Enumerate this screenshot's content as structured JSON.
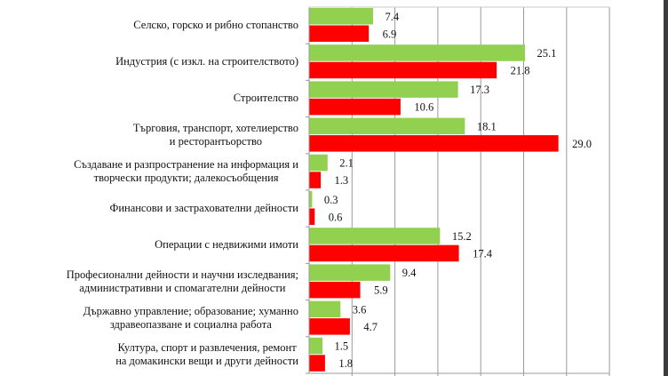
{
  "chart_data": {
    "type": "bar",
    "orientation": "horizontal",
    "categories": [
      "Селско, горско и рибно стопанство",
      "Индустрия (с изкл. на строителството)",
      "Строителство",
      "Търговия, транспорт, хотелиерство\nи ресторантьорство",
      "Създаване и разпространение на информация и\nтворчески продукти; далекосъобщения",
      "Финансови и застрахователни дейности",
      "Операции с недвижими имоти",
      "Професионални дейности и научни изследвания;\nадминистративни и спомагателни дейности",
      "Държавно управление; образование; хуманно\nздравеопазване и социална работа",
      "Култура, спорт и развлечения, ремонт\nна домакински вещи и други дейности"
    ],
    "series": [
      {
        "color": "#92D050",
        "values": [
          7.4,
          25.1,
          17.3,
          18.1,
          2.1,
          0.3,
          15.2,
          9.4,
          3.6,
          1.5
        ],
        "labels": [
          "7.4",
          "25.1",
          "17.3",
          "18.1",
          "2.1",
          "0.3",
          "15.2",
          "9.4",
          "3.6",
          "1.5"
        ]
      },
      {
        "color": "#FF0000",
        "values": [
          6.9,
          21.8,
          10.6,
          29.0,
          1.3,
          0.6,
          17.4,
          5.9,
          4.7,
          1.8
        ],
        "labels": [
          "6.9",
          "21.8",
          "10.6",
          "29.0",
          "1.3",
          "0.6",
          "17.4",
          "5.9",
          "4.7",
          "1.8"
        ]
      }
    ],
    "xlim": [
      0,
      35
    ],
    "grid": true,
    "xtick_step": 5,
    "tick_labels_visible": false,
    "data_labels": true
  }
}
